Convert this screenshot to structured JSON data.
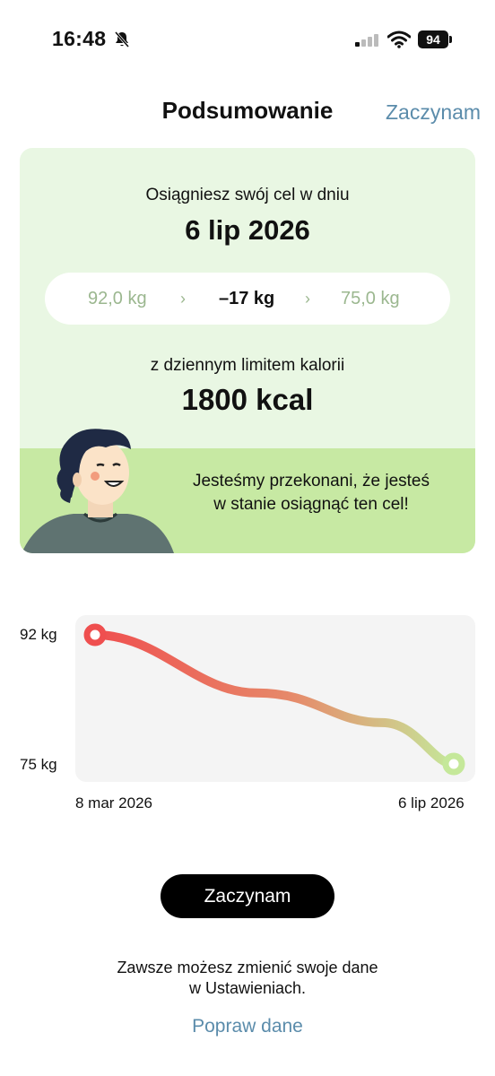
{
  "status_bar": {
    "time": "16:48",
    "battery": "94"
  },
  "header": {
    "title": "Podsumowanie",
    "action": "Zaczynam"
  },
  "summary": {
    "goal_caption": "Osiągniesz swój cel w dniu",
    "goal_date": "6 lip 2026",
    "start_weight": "92,0 kg",
    "weight_change": "–17 kg",
    "target_weight": "75,0 kg",
    "limit_caption": "z dziennym limitem kalorii",
    "limit_value": "1800 kcal",
    "motivation": "Jesteśmy przekonani, że jesteś w stanie osiągnąć ten cel!"
  },
  "chart_data": {
    "type": "line",
    "x": [
      "8 mar 2026",
      "6 lip 2026"
    ],
    "y_ticks": [
      "92 kg",
      "75 kg"
    ],
    "series": [
      {
        "values": [
          92,
          75
        ]
      }
    ],
    "colors": {
      "start": "#ef4f4f",
      "end": "#c5e89a"
    }
  },
  "actions": {
    "primary": "Zaczynam",
    "edit": "Popraw dane"
  },
  "footer": {
    "note_line1": "Zawsze możesz zmienić swoje dane",
    "note_line2": "w Ustawieniach."
  }
}
